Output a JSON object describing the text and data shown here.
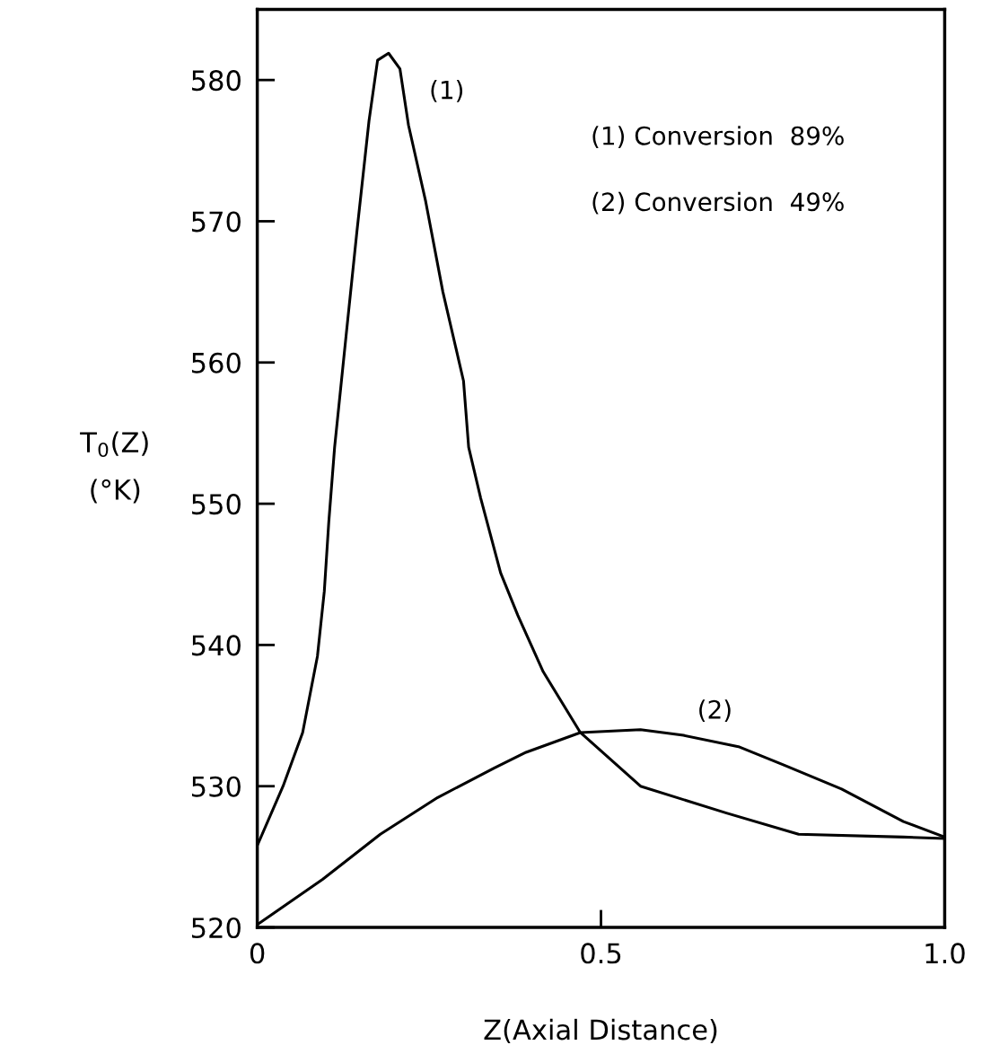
{
  "chart_data": {
    "type": "line",
    "xlabel": "Z(Axial Distance)",
    "ylabel": "T$_{0}$(Z)\n(°K)",
    "xlim": [
      0,
      1.0
    ],
    "ylim": [
      520,
      585
    ],
    "xticks": [
      0,
      0.5,
      {
        "value": 1.0,
        "label": "1.0"
      }
    ],
    "yticks": [
      520,
      530,
      540,
      550,
      560,
      570,
      580
    ],
    "grid": false,
    "legend": false,
    "marker": "none",
    "line_style": "solid",
    "series": [
      {
        "color": "#000000",
        "x": [
          0,
          0.0375,
          0.066,
          0.0875,
          0.0975,
          0.104,
          0.1125,
          0.129,
          0.145,
          0.1625,
          0.175,
          0.191,
          0.2075,
          0.22,
          0.245,
          0.27,
          0.3,
          0.3075,
          0.325,
          0.354,
          0.379,
          0.416,
          0.47,
          0.5575,
          0.6825,
          0.7875,
          0.94,
          1.0
        ],
        "values": [
          525.8,
          530.0,
          533.8,
          539.2,
          543.8,
          548.7,
          554.0,
          561.8,
          569.3,
          577.1,
          581.4,
          581.9,
          580.8,
          576.8,
          571.4,
          565.0,
          558.7,
          554.0,
          550.4,
          545.1,
          542.1,
          538.1,
          533.8,
          530.0,
          528.1,
          526.6,
          526.4,
          526.3
        ]
      },
      {
        "color": "#000000",
        "x": [
          0,
          0.095,
          0.179,
          0.2625,
          0.345,
          0.391,
          0.47,
          0.5575,
          0.62,
          0.7,
          0.766,
          0.85,
          0.94,
          1.0
        ],
        "values": [
          520.2,
          523.4,
          526.6,
          529.2,
          531.3,
          532.4,
          533.8,
          534.0,
          533.6,
          532.8,
          531.5,
          529.8,
          527.5,
          526.4
        ]
      }
    ],
    "annotations": [
      "(1)",
      "(2)",
      "(1) Conversion  89%",
      "(2) Conversion  49%"
    ]
  }
}
